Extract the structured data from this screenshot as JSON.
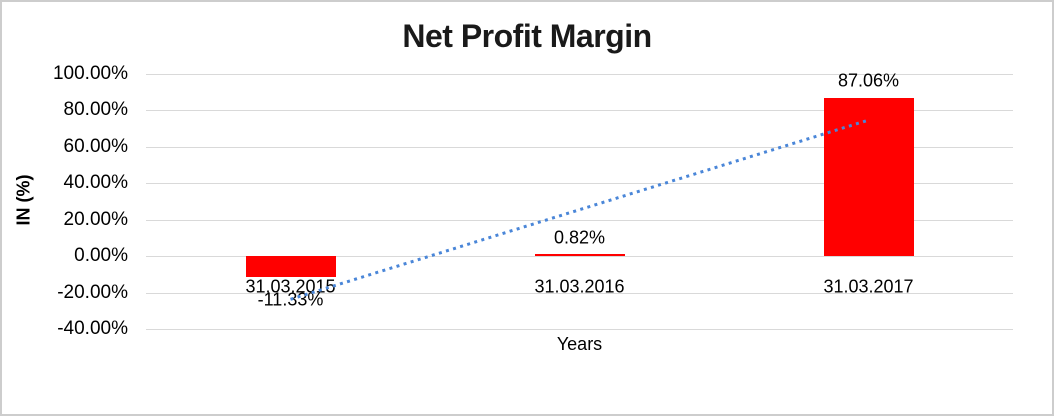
{
  "frame": {
    "background": "#ffffff",
    "border_color": "#cdcdcd"
  },
  "chart_data": {
    "type": "bar",
    "title": "Net Profit Margin",
    "xlabel": "Years",
    "ylabel": "IN (%)",
    "categories": [
      "31.03.2015",
      "31.03.2016",
      "31.03.2017"
    ],
    "values": [
      -11.33,
      0.82,
      87.06
    ],
    "data_labels": [
      "-11.33%",
      "0.82%",
      "87.06%"
    ],
    "ylim": [
      -40,
      100
    ],
    "ytick_values": [
      100,
      80,
      60,
      40,
      20,
      0,
      -20,
      -40
    ],
    "ytick_labels": [
      "100.00%",
      "80.00%",
      "60.00%",
      "40.00%",
      "20.00%",
      "0.00%",
      "-20.00%",
      "-40.00%"
    ],
    "grid": true,
    "legend": false,
    "bar_color": "#ff0000",
    "gridline_color": "#d9d9d9",
    "trendline": {
      "type": "linear",
      "line_style": "dotted",
      "color": "#4a86d8"
    }
  }
}
